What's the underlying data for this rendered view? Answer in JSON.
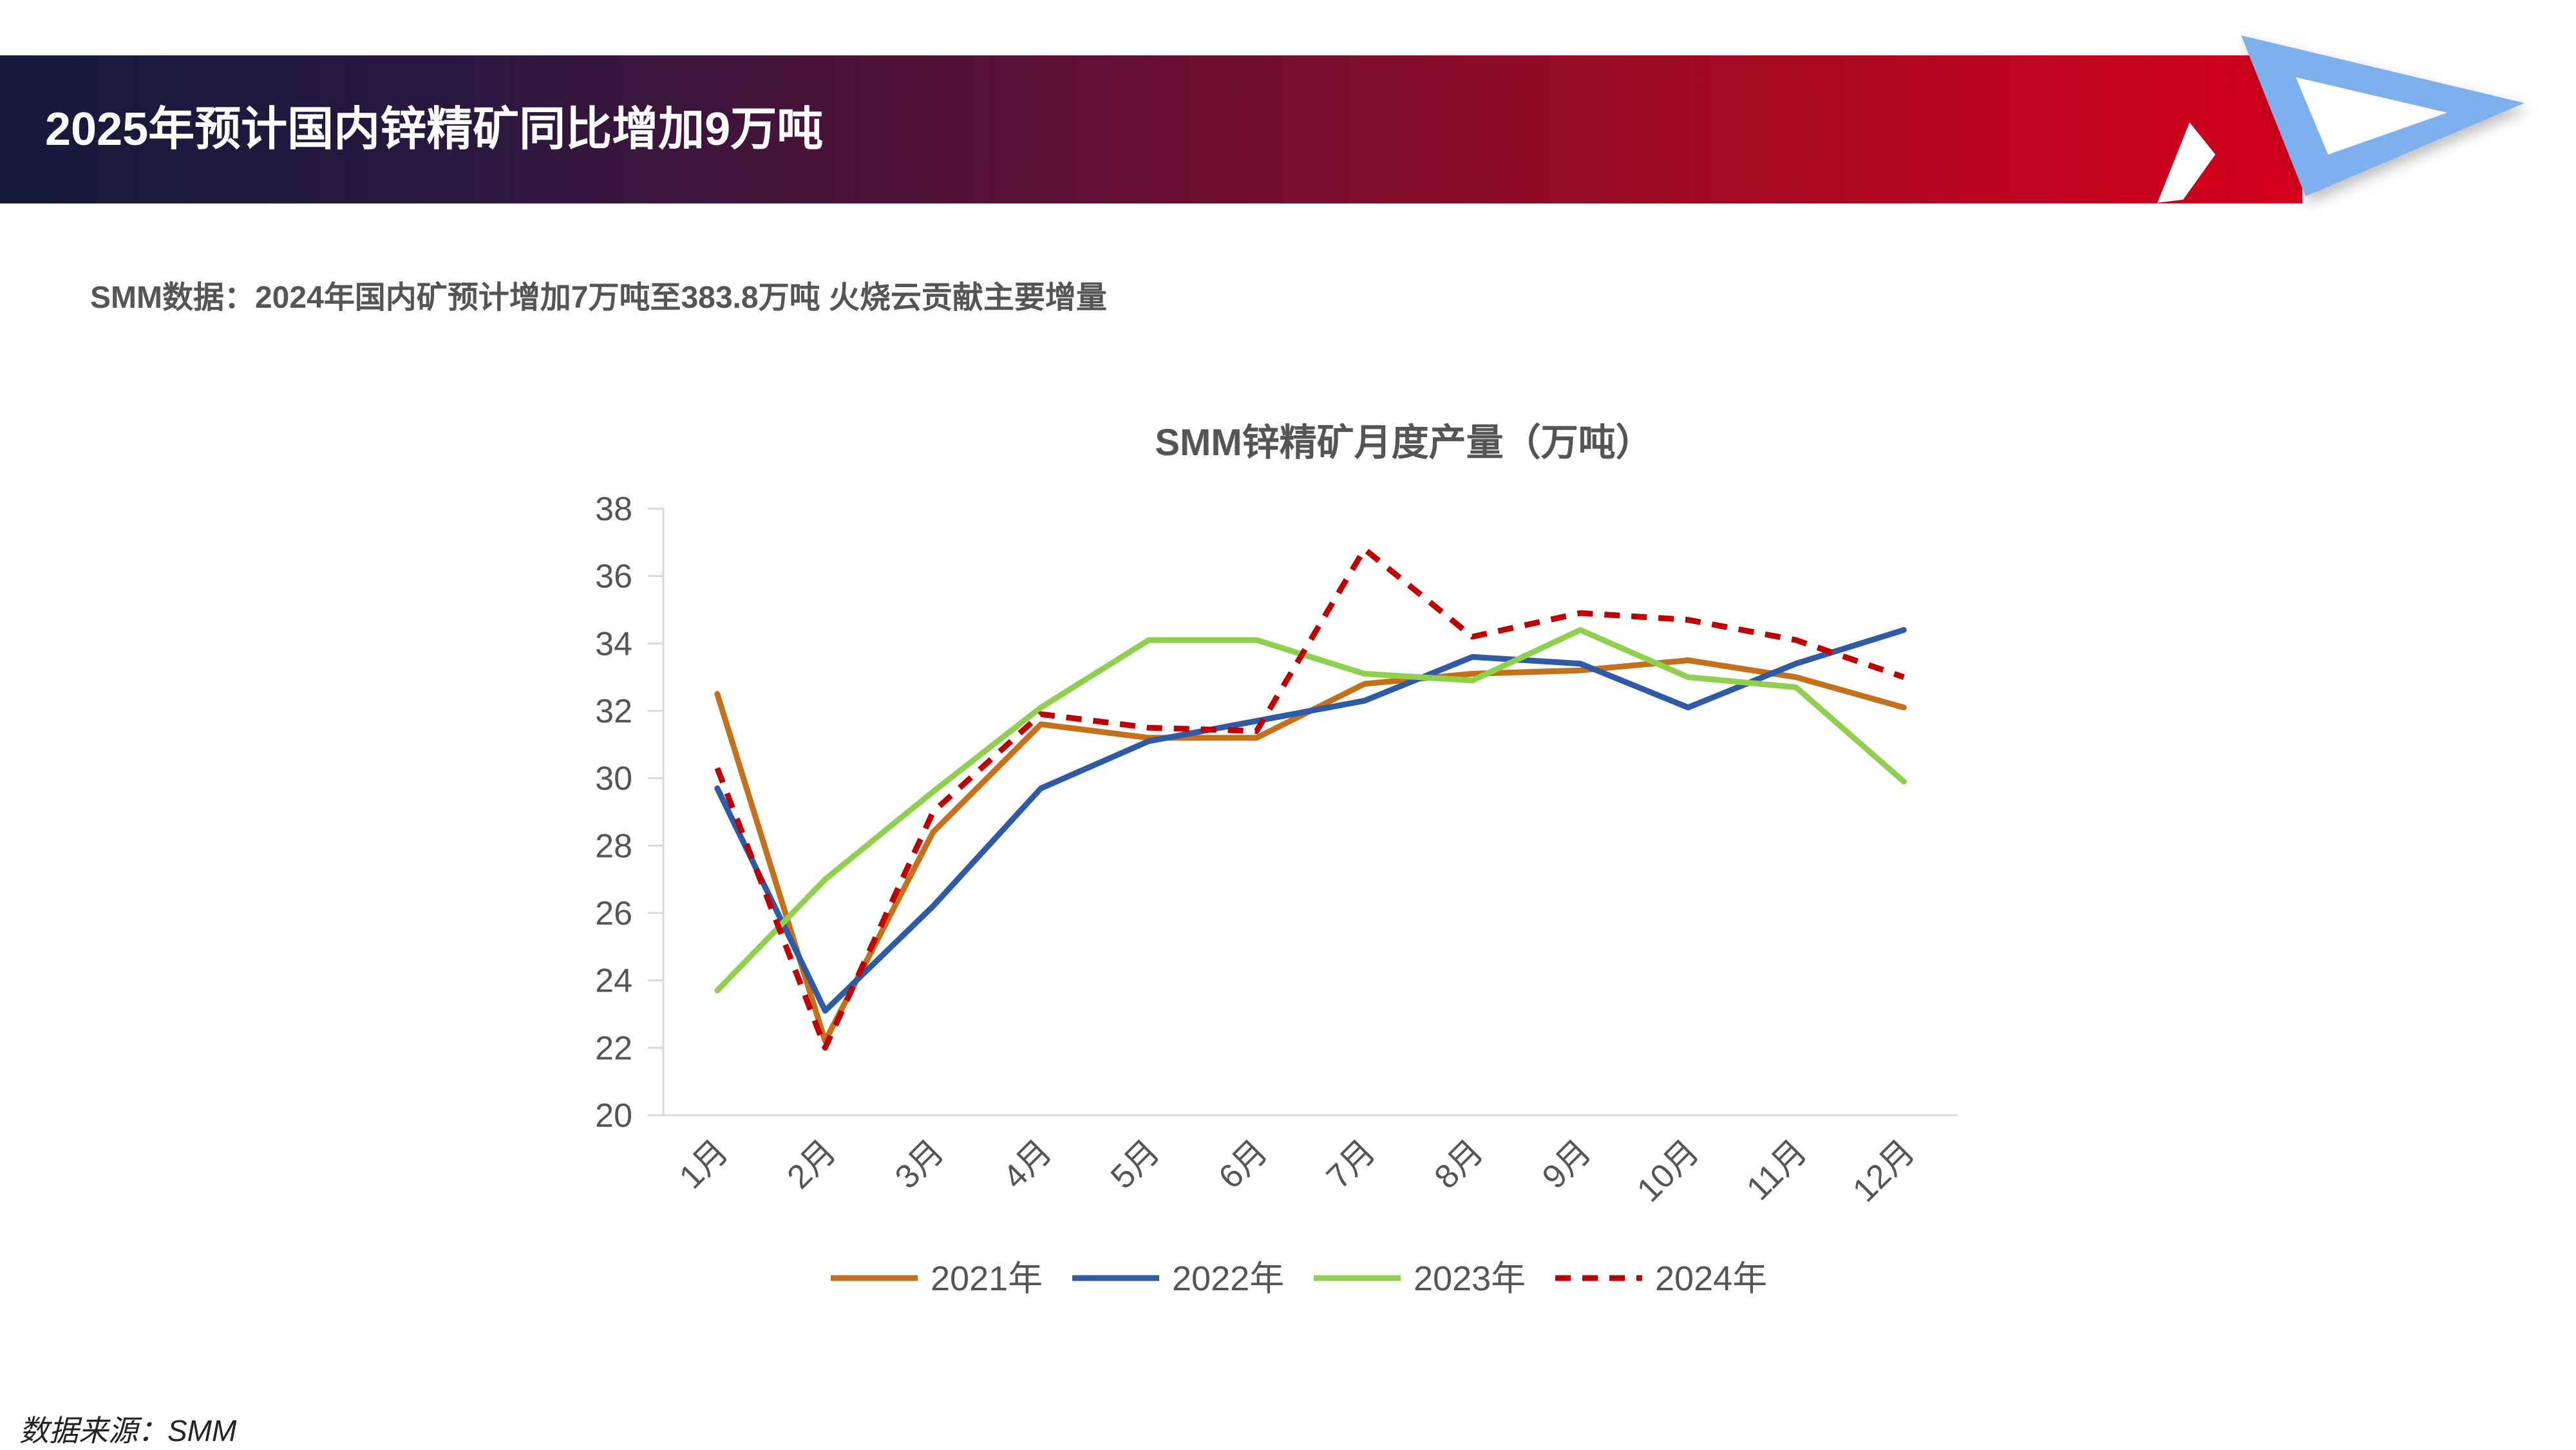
{
  "header": {
    "title": "2025年预计国内锌精矿同比增加9万吨"
  },
  "subtitle": "SMM数据：2024年国内矿预计增加7万吨至383.8万吨 火烧云贡献主要增量",
  "source": "数据来源：SMM",
  "colors": {
    "accent_red": "#d4001c",
    "accent_navy": "#141a3c",
    "logo_blue": "#7fb0ee"
  },
  "chart_data": {
    "type": "line",
    "title": "SMM锌精矿月度产量（万吨）",
    "xlabel": "",
    "ylabel": "",
    "ylim": [
      20,
      38
    ],
    "yticks": [
      20,
      22,
      24,
      26,
      28,
      30,
      32,
      34,
      36,
      38
    ],
    "categories": [
      "1月",
      "2月",
      "3月",
      "4月",
      "5月",
      "6月",
      "7月",
      "8月",
      "9月",
      "10月",
      "11月",
      "12月"
    ],
    "legend_position": "bottom",
    "grid": false,
    "series": [
      {
        "name": "2021年",
        "color": "#c5701a",
        "dashed": false,
        "values": [
          32.5,
          22.2,
          28.4,
          31.6,
          31.2,
          31.2,
          32.8,
          33.1,
          33.2,
          33.5,
          33.0,
          32.1
        ]
      },
      {
        "name": "2022年",
        "color": "#2e5aa6",
        "dashed": false,
        "values": [
          29.7,
          23.1,
          26.2,
          29.7,
          31.1,
          31.7,
          32.3,
          33.6,
          33.4,
          32.1,
          33.4,
          34.4
        ]
      },
      {
        "name": "2023年",
        "color": "#8fd04f",
        "dashed": false,
        "values": [
          23.7,
          27.0,
          29.6,
          32.1,
          34.1,
          34.1,
          33.1,
          32.9,
          34.4,
          33.0,
          32.7,
          29.9
        ]
      },
      {
        "name": "2024年",
        "color": "#c00000",
        "dashed": true,
        "values": [
          30.3,
          22.0,
          29.0,
          31.9,
          31.5,
          31.4,
          36.8,
          34.2,
          34.9,
          34.7,
          34.1,
          33.0
        ]
      }
    ]
  }
}
